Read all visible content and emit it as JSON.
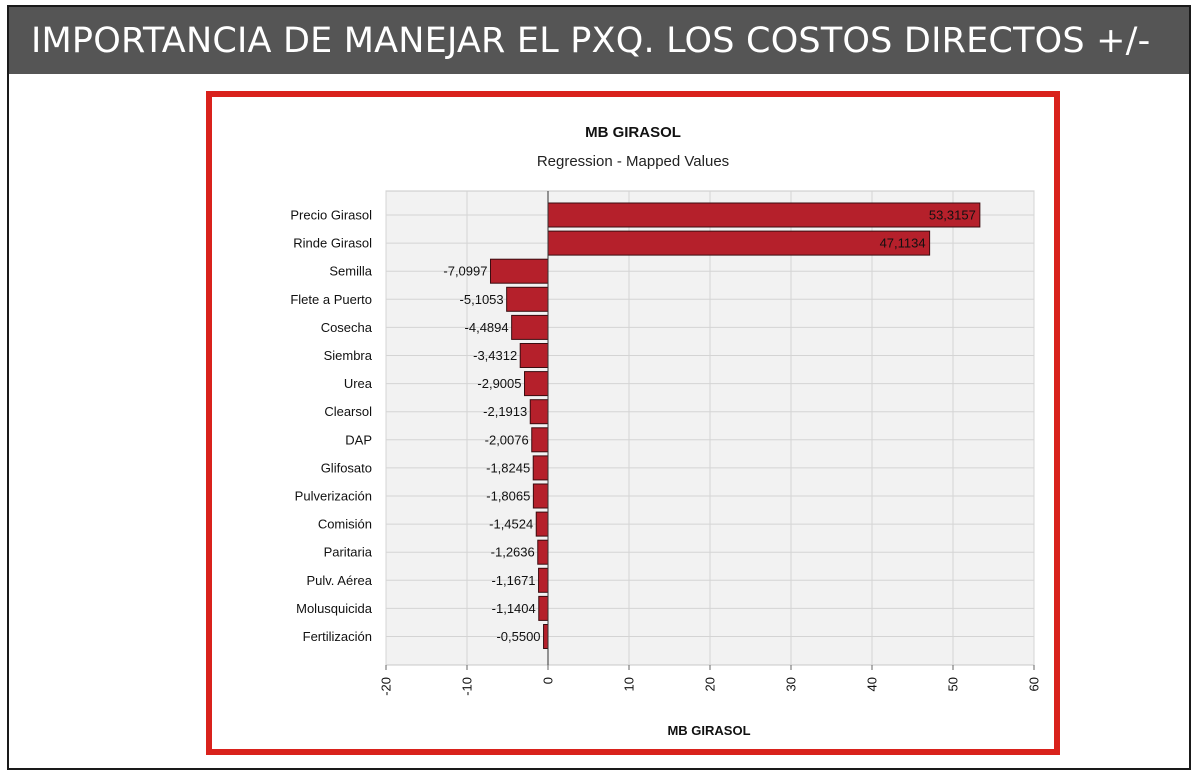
{
  "slide": {
    "title": "IMPORTANCIA DE MANEJAR EL PXQ. LOS COSTOS DIRECTOS +/-"
  },
  "colors": {
    "title_bar": "#555555",
    "frame_border": "#d9221c",
    "bar_fill": "#b5202b",
    "bar_stroke": "#3a0c10",
    "plot_bg": "#f2f2f2",
    "grid": "#d4d4d4"
  },
  "chart_data": {
    "type": "bar",
    "orientation": "horizontal",
    "title": "MB GIRASOL",
    "subtitle": "Regression - Mapped Values",
    "xlabel": "MB GIRASOL",
    "ylabel": "",
    "xlim": [
      -20,
      60
    ],
    "xticks": [
      "-20",
      "-10",
      "0",
      "10",
      "20",
      "30",
      "40",
      "50",
      "60"
    ],
    "grid": true,
    "legend": "none",
    "categories": [
      "Precio Girasol",
      "Rinde Girasol",
      "Semilla",
      "Flete a Puerto",
      "Cosecha",
      "Siembra",
      "Urea",
      "Clearsol",
      "DAP",
      "Glifosato",
      "Pulverización",
      "Comisión",
      "Paritaria",
      "Pulv. Aérea",
      "Molusquicida",
      "Fertilización"
    ],
    "values": [
      53.3157,
      47.1134,
      -7.0997,
      -5.1053,
      -4.4894,
      -3.4312,
      -2.9005,
      -2.1913,
      -2.0076,
      -1.8245,
      -1.8065,
      -1.4524,
      -1.2636,
      -1.1671,
      -1.1404,
      -0.55
    ],
    "value_labels": [
      "53,3157",
      "47,1134",
      "-7,0997",
      "-5,1053",
      "-4,4894",
      "-3,4312",
      "-2,9005",
      "-2,1913",
      "-2,0076",
      "-1,8245",
      "-1,8065",
      "-1,4524",
      "-1,2636",
      "-1,1671",
      "-1,1404",
      "-0,5500"
    ]
  }
}
